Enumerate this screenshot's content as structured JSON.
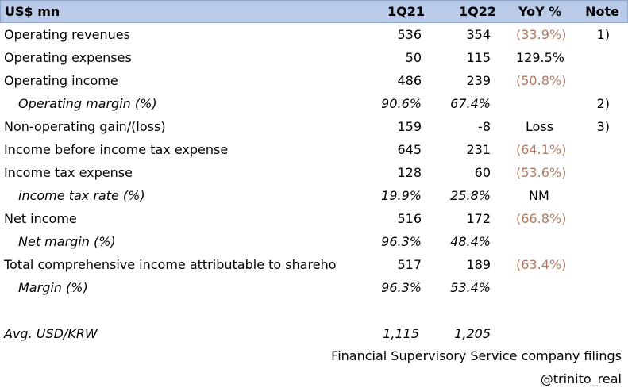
{
  "header": {
    "label": "US$ mn",
    "col1": "1Q21",
    "col2": "1Q22",
    "col3": "YoY %",
    "col4": "Note"
  },
  "rows": [
    {
      "label": "Operating revenues",
      "q1": "536",
      "q2": "354",
      "yoy": "(33.9%)",
      "note": "1)"
    },
    {
      "label": "Operating expenses",
      "q1": "50",
      "q2": "115",
      "yoy": "129.5%",
      "note": ""
    },
    {
      "label": "Operating income",
      "q1": "486",
      "q2": "239",
      "yoy": "(50.8%)",
      "note": ""
    },
    {
      "label": "Operating margin (%)",
      "q1": "90.6%",
      "q2": "67.4%",
      "yoy": "",
      "note": "2)"
    },
    {
      "label": "Non-operating gain/(loss)",
      "q1": "159",
      "q2": "-8",
      "yoy": "Loss",
      "note": "3)"
    },
    {
      "label": "Income before income tax expense",
      "q1": "645",
      "q2": "231",
      "yoy": "(64.1%)",
      "note": ""
    },
    {
      "label": "Income tax expense",
      "q1": "128",
      "q2": "60",
      "yoy": "(53.6%)",
      "note": ""
    },
    {
      "label": "income tax rate (%)",
      "q1": "19.9%",
      "q2": "25.8%",
      "yoy": "NM",
      "note": ""
    },
    {
      "label": "Net income",
      "q1": "516",
      "q2": "172",
      "yoy": "(66.8%)",
      "note": ""
    },
    {
      "label": "Net margin (%)",
      "q1": "96.3%",
      "q2": "48.4%",
      "yoy": "",
      "note": ""
    },
    {
      "label": "Total comprehensive income attributable to shareho",
      "q1": "517",
      "q2": "189",
      "yoy": "(63.4%)",
      "note": ""
    },
    {
      "label": "Margin (%)",
      "q1": "96.3%",
      "q2": "53.4%",
      "yoy": "",
      "note": ""
    },
    {
      "label": "Avg. USD/KRW",
      "q1": "1,115",
      "q2": "1,205",
      "yoy": "",
      "note": ""
    }
  ],
  "source": "Financial Supervisory Service company filings",
  "handle": "@trinito_real",
  "colors": {
    "header_bg": "#b9cbe8",
    "negative": "#b07a63"
  }
}
